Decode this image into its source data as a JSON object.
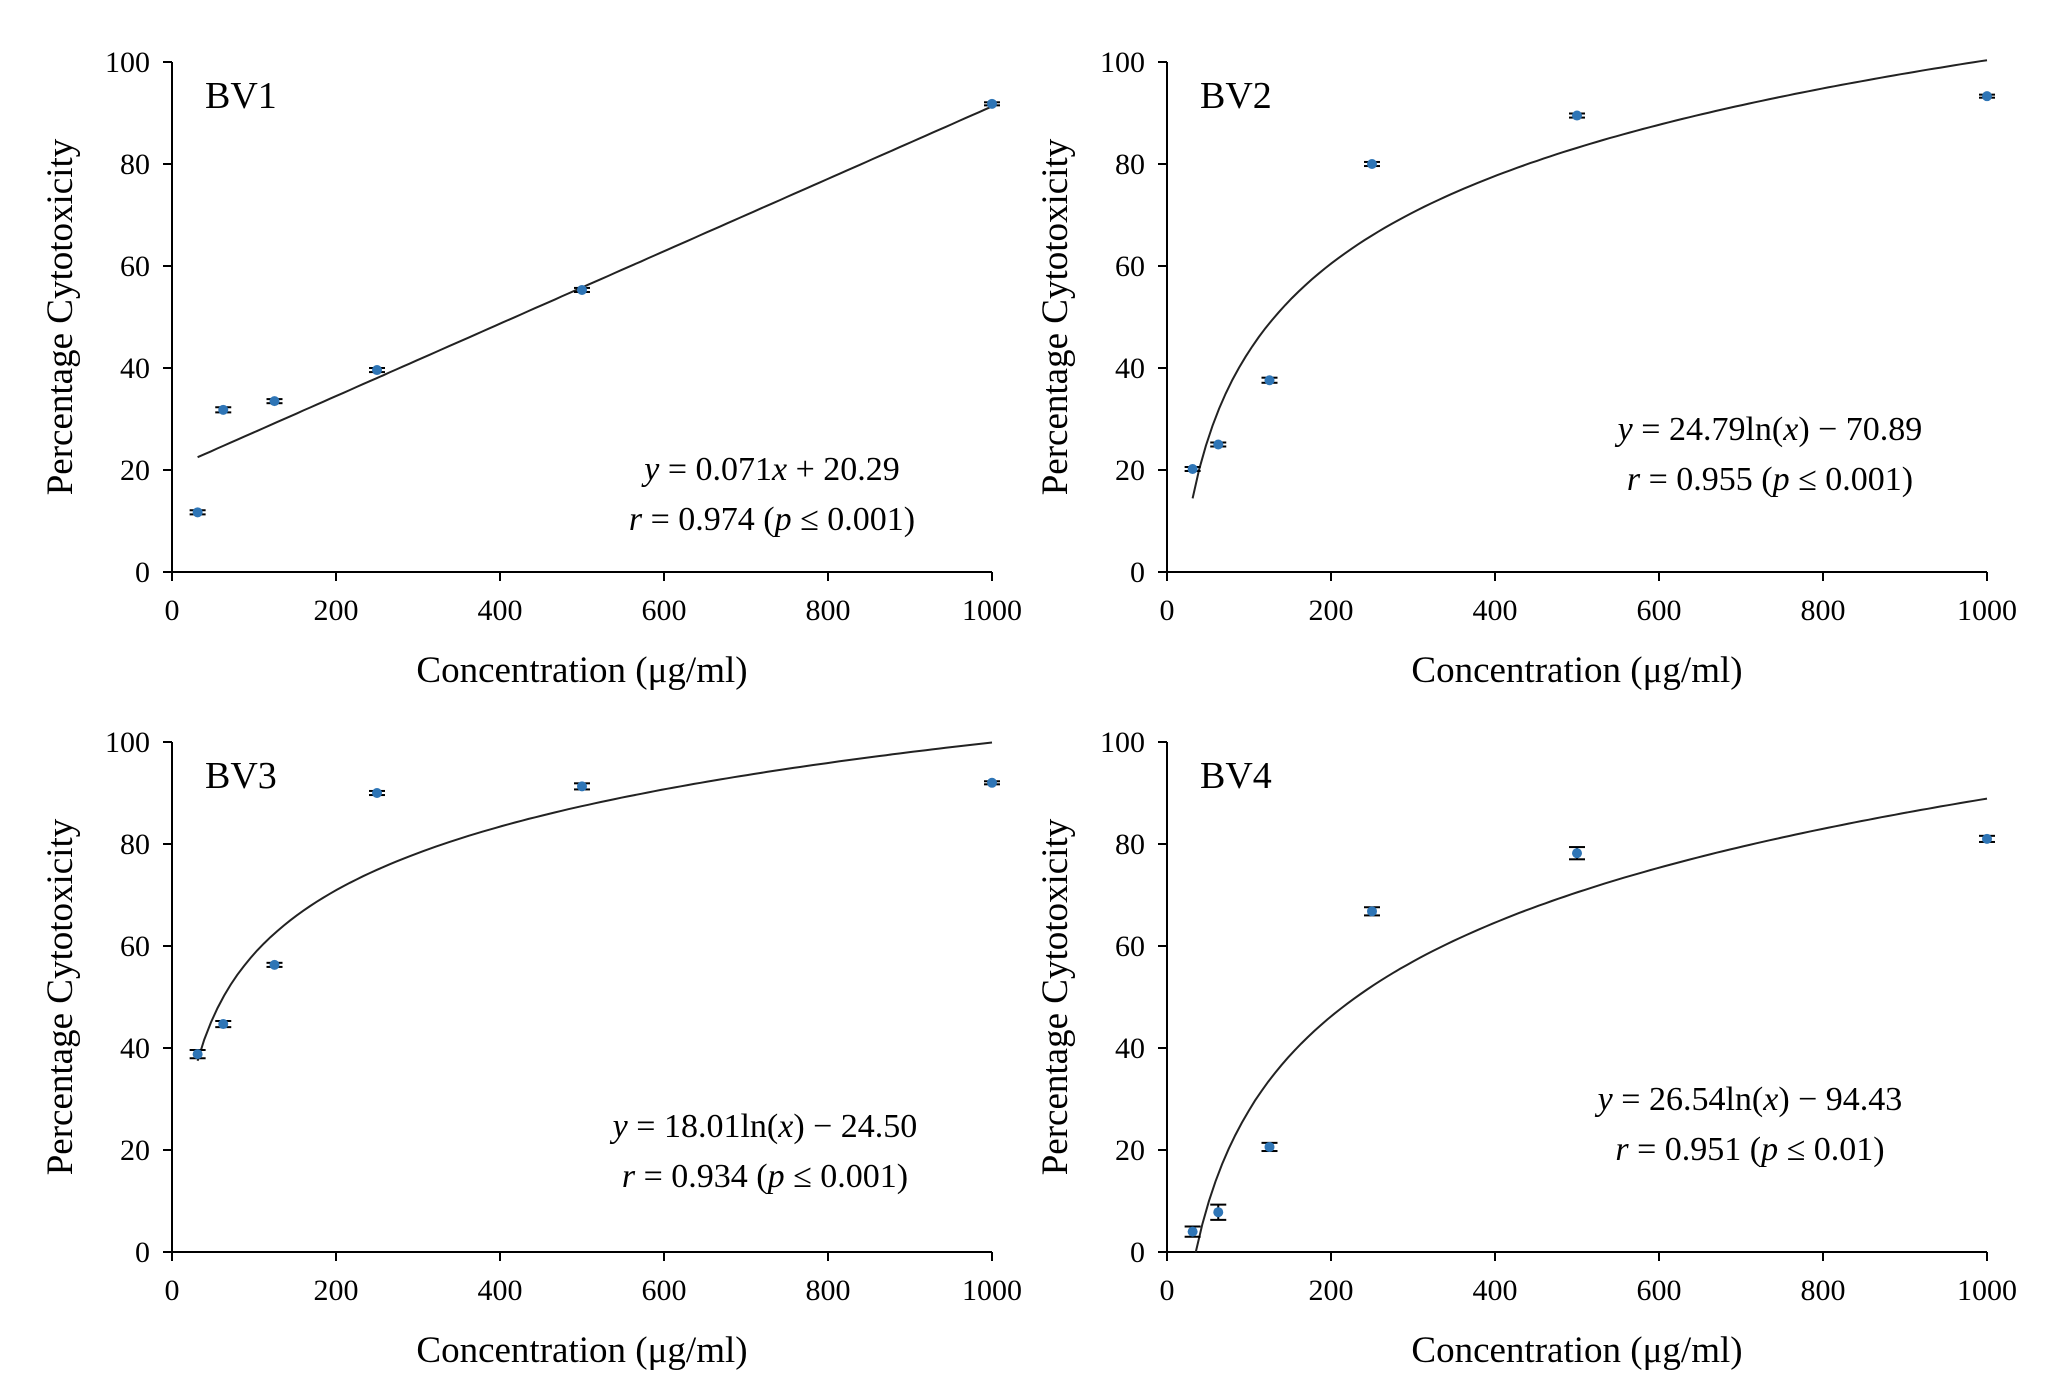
{
  "chart_data": [
    {
      "id": "bv1",
      "type": "scatter",
      "title": "BV1",
      "xlabel": "Concentration  (μg/ml)",
      "ylabel": "Percentage  Cytotoxicity",
      "xlim": [
        0,
        1000
      ],
      "ylim": [
        0,
        100
      ],
      "xticks": [
        "0",
        "200",
        "400",
        "600",
        "800",
        "1000"
      ],
      "yticks": [
        "0",
        "20",
        "40",
        "60",
        "80",
        "100"
      ],
      "points": [
        {
          "x": 31.25,
          "y": 11.7,
          "err": 0.4
        },
        {
          "x": 62.5,
          "y": 31.8,
          "err": 0.5
        },
        {
          "x": 125,
          "y": 33.5,
          "err": 0.4
        },
        {
          "x": 250,
          "y": 39.6,
          "err": 0.4
        },
        {
          "x": 500,
          "y": 55.3,
          "err": 0.4
        },
        {
          "x": 1000,
          "y": 91.8,
          "err": 0.3
        }
      ],
      "fit": {
        "model": "linear",
        "a": 0.071,
        "b": 20.29,
        "x_range": [
          31.25,
          1000
        ]
      },
      "equation": {
        "y": "y",
        "eq": " = 0.071",
        "x": "x",
        "rest": " + 20.29"
      },
      "stats": {
        "r": "r",
        "r_val": " = 0.974  (",
        "p": "p",
        "p_val": " ≤ 0.001)"
      }
    },
    {
      "id": "bv2",
      "type": "scatter",
      "title": "BV2",
      "xlabel": "Concentration  (μg/ml)",
      "ylabel": "Percentage  Cytotoxicity",
      "xlim": [
        0,
        1000
      ],
      "ylim": [
        0,
        100
      ],
      "xticks": [
        "0",
        "200",
        "400",
        "600",
        "800",
        "1000"
      ],
      "yticks": [
        "0",
        "20",
        "40",
        "60",
        "80",
        "100"
      ],
      "points": [
        {
          "x": 31.25,
          "y": 20.2,
          "err": 0.4
        },
        {
          "x": 62.5,
          "y": 25.0,
          "err": 0.4
        },
        {
          "x": 125,
          "y": 37.6,
          "err": 0.5
        },
        {
          "x": 250,
          "y": 80.0,
          "err": 0.4
        },
        {
          "x": 500,
          "y": 89.5,
          "err": 0.4
        },
        {
          "x": 1000,
          "y": 93.3,
          "err": 0.3
        }
      ],
      "fit": {
        "model": "log",
        "a": 24.79,
        "b": -70.89,
        "x_range": [
          31.25,
          1000
        ]
      },
      "equation": {
        "y": "y",
        "eq": " = 24.79ln(",
        "x": "x",
        "rest": ")  −  70.89"
      },
      "stats": {
        "r": "r",
        "r_val": " = 0.955  (",
        "p": "p",
        "p_val": " ≤ 0.001)"
      }
    },
    {
      "id": "bv3",
      "type": "scatter",
      "title": "BV3",
      "xlabel": "Concentration  (μg/ml)",
      "ylabel": "Percentage  Cytotoxicity",
      "xlim": [
        0,
        1000
      ],
      "ylim": [
        0,
        100
      ],
      "xticks": [
        "0",
        "200",
        "400",
        "600",
        "800",
        "1000"
      ],
      "yticks": [
        "0",
        "20",
        "40",
        "60",
        "80",
        "100"
      ],
      "points": [
        {
          "x": 31.25,
          "y": 38.8,
          "err": 0.8
        },
        {
          "x": 62.5,
          "y": 44.7,
          "err": 0.6
        },
        {
          "x": 125,
          "y": 56.3,
          "err": 0.4
        },
        {
          "x": 250,
          "y": 90.0,
          "err": 0.4
        },
        {
          "x": 500,
          "y": 91.3,
          "err": 0.6
        },
        {
          "x": 1000,
          "y": 92.0,
          "err": 0.3
        }
      ],
      "fit": {
        "model": "log",
        "a": 18.01,
        "b": -24.5,
        "x_range": [
          31.25,
          1000
        ]
      },
      "equation": {
        "y": "y",
        "eq": " = 18.01ln(",
        "x": "x",
        "rest": ")  −  24.50"
      },
      "stats": {
        "r": "r",
        "r_val": " = 0.934  (",
        "p": "p",
        "p_val": " ≤ 0.001)"
      }
    },
    {
      "id": "bv4",
      "type": "scatter",
      "title": "BV4",
      "xlabel": "Concentration  (μg/ml)",
      "ylabel": "Percentage  Cytotoxicity",
      "xlim": [
        0,
        1000
      ],
      "ylim": [
        0,
        100
      ],
      "xticks": [
        "0",
        "200",
        "400",
        "600",
        "800",
        "1000"
      ],
      "yticks": [
        "0",
        "20",
        "40",
        "60",
        "80",
        "100"
      ],
      "points": [
        {
          "x": 31.25,
          "y": 4.0,
          "err": 1.0
        },
        {
          "x": 62.5,
          "y": 7.8,
          "err": 1.5
        },
        {
          "x": 125,
          "y": 20.6,
          "err": 0.8
        },
        {
          "x": 250,
          "y": 66.8,
          "err": 0.8
        },
        {
          "x": 500,
          "y": 78.2,
          "err": 1.2
        },
        {
          "x": 1000,
          "y": 81.0,
          "err": 0.6
        }
      ],
      "fit": {
        "model": "log",
        "a": 26.54,
        "b": -94.43,
        "x_range": [
          35,
          1000
        ]
      },
      "equation": {
        "y": "y",
        "eq": " = 26.54ln(",
        "x": "x",
        "rest": ")  −  94.43"
      },
      "stats": {
        "r": "r",
        "r_val": " = 0.951  (",
        "p": "p",
        "p_val": " ≤ 0.01)"
      }
    }
  ],
  "colors": {
    "marker": "#2e75b6",
    "fit_line": "#222222",
    "axis": "#000000"
  }
}
